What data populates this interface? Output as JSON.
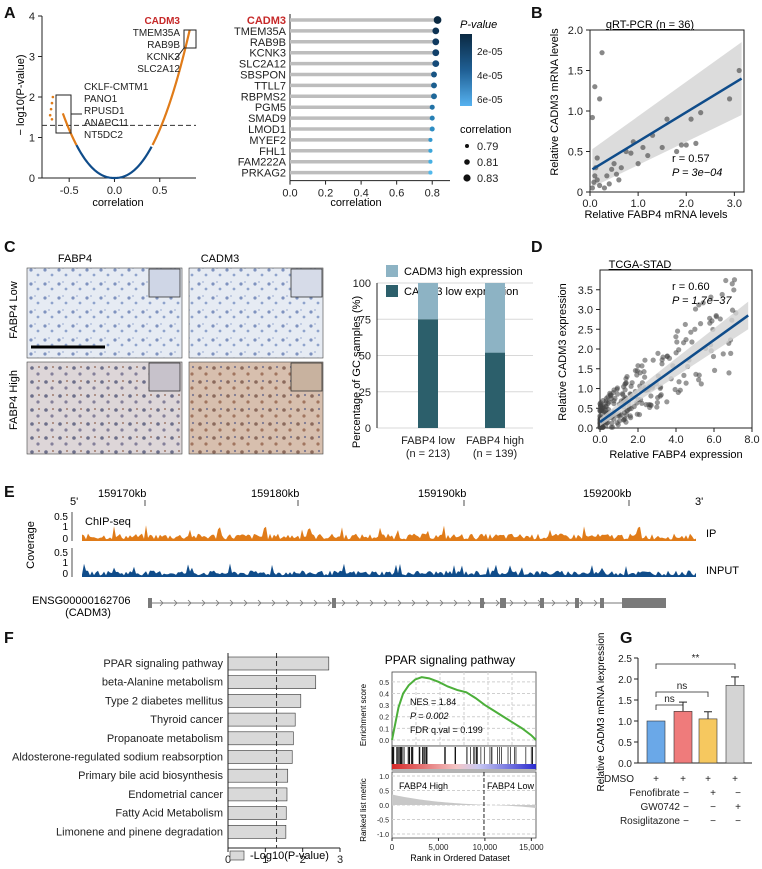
{
  "panel_letters": [
    "A",
    "B",
    "C",
    "D",
    "E",
    "F",
    "G"
  ],
  "colors": {
    "red_gene": "#c62828",
    "orange": "#e07b18",
    "navy": "#0f4c8a",
    "bar_high": "#8db3c4",
    "bar_low": "#2c5f6b",
    "grey_fill": "#d9d9d9",
    "gsea_green": "#4caf3a",
    "g_blue": "#6aa8e8",
    "g_red": "#ef7b7b",
    "g_yellow": "#f6c85f",
    "g_grey": "#d4d4d4"
  },
  "chart_data": [
    {
      "id": "A_volcano",
      "type": "scatter",
      "xlabel": "correlation",
      "ylabel": "− log10(P-value)",
      "xlim": [
        -0.8,
        0.9
      ],
      "ylim": [
        0,
        4
      ],
      "xticks": [
        "-0.5",
        "0.0",
        "0.5"
      ],
      "yticks": [
        "0",
        "1",
        "2",
        "3",
        "4"
      ],
      "threshold_y": 1.3,
      "top_labels": [
        "CADM3",
        "TMEM35A",
        "RAB9B",
        "KCNK3",
        "SLC2A12"
      ],
      "bottom_labels": [
        "CKLF-CMTM1",
        "PANO1",
        "RPUSD1",
        "ANAPC11",
        "NT5DC2"
      ]
    },
    {
      "id": "A_lollipop",
      "type": "bar",
      "categories": [
        "CADM3",
        "TMEM35A",
        "RAB9B",
        "KCNK3",
        "SLC2A12",
        "SBSPON",
        "TTLL7",
        "RBPMS2",
        "PGM5",
        "SMAD9",
        "LMOD1",
        "MYEF2",
        "FHL1",
        "FAM222A",
        "PRKAG2"
      ],
      "values": [
        0.83,
        0.82,
        0.82,
        0.82,
        0.82,
        0.81,
        0.81,
        0.81,
        0.8,
        0.8,
        0.8,
        0.79,
        0.79,
        0.79,
        0.79
      ],
      "xlabel": "correlation",
      "xticks": [
        "0.0",
        "0.2",
        "0.4",
        "0.6",
        "0.8"
      ],
      "xlim": [
        0,
        0.9
      ],
      "legend_pvalue_title": "P-value",
      "legend_pvalue_ticks": [
        "2e-05",
        "4e-05",
        "6e-05"
      ],
      "legend_corr_title": "correlation",
      "legend_corr_values": [
        "0.79",
        "0.81",
        "0.83"
      ]
    },
    {
      "id": "B_scatter",
      "type": "scatter",
      "title": "qRT-PCR (n = 36)",
      "xlabel": "Relative FABP4 mRNA levels",
      "ylabel": "Relative CADM3 mRNA levels",
      "xlim": [
        0,
        3.2
      ],
      "ylim": [
        0,
        2.0
      ],
      "xticks": [
        "0.0",
        "1.0",
        "2.0",
        "3.0"
      ],
      "yticks": [
        "0",
        "0.5",
        "1.0",
        "1.5",
        "2.0"
      ],
      "stat_r": "r = 0.57",
      "stat_p": "P = 3e−04",
      "fit": [
        [
          0.05,
          0.28
        ],
        [
          3.15,
          1.4
        ]
      ],
      "points": [
        [
          0.05,
          0.05
        ],
        [
          0.08,
          0.12
        ],
        [
          0.1,
          0.2
        ],
        [
          0.12,
          0.3
        ],
        [
          0.1,
          1.3
        ],
        [
          0.2,
          1.15
        ],
        [
          0.25,
          1.72
        ],
        [
          0.05,
          0.92
        ],
        [
          0.15,
          0.42
        ],
        [
          0.3,
          0.05
        ],
        [
          0.35,
          0.2
        ],
        [
          0.4,
          0.1
        ],
        [
          0.45,
          0.28
        ],
        [
          0.5,
          0.35
        ],
        [
          0.55,
          0.22
        ],
        [
          0.6,
          0.15
        ],
        [
          0.65,
          0.3
        ],
        [
          0.75,
          0.5
        ],
        [
          0.85,
          0.48
        ],
        [
          0.9,
          0.62
        ],
        [
          1.0,
          0.35
        ],
        [
          1.1,
          0.55
        ],
        [
          1.2,
          0.45
        ],
        [
          1.3,
          0.7
        ],
        [
          1.5,
          0.55
        ],
        [
          1.6,
          0.9
        ],
        [
          1.8,
          0.5
        ],
        [
          1.9,
          0.58
        ],
        [
          2.0,
          0.58
        ],
        [
          2.1,
          0.9
        ],
        [
          2.2,
          0.6
        ],
        [
          2.3,
          0.98
        ],
        [
          2.9,
          1.15
        ],
        [
          3.1,
          1.5
        ],
        [
          0.2,
          0.08
        ],
        [
          0.15,
          0.15
        ]
      ]
    },
    {
      "id": "C_bars",
      "type": "bar",
      "ylabel": "Percentage of GC samples (%)",
      "categories": [
        "FABP4 low",
        "FABP4 high"
      ],
      "category_n": [
        "(n = 213)",
        "(n = 139)"
      ],
      "series": [
        {
          "name": "CADM3 low expression",
          "values": [
            75,
            52
          ]
        },
        {
          "name": "CADM3 high expression",
          "values": [
            25,
            48
          ]
        }
      ],
      "ylim": [
        0,
        100
      ],
      "yticks": [
        "0",
        "25",
        "50",
        "75",
        "100"
      ]
    },
    {
      "id": "D_scatter",
      "type": "scatter",
      "title": "TCGA-STAD",
      "xlabel": "Relative FABP4 expression",
      "ylabel": "Relative CADM3 expression",
      "xlim": [
        0,
        8
      ],
      "ylim": [
        0,
        4
      ],
      "xticks": [
        "0.0",
        "2.0",
        "4.0",
        "6.0",
        "8.0"
      ],
      "yticks": [
        "0.0",
        "0.5",
        "1.0",
        "1.5",
        "2.0",
        "2.5",
        "3.0",
        "3.5"
      ],
      "stat_r": "r = 0.60",
      "stat_p": "P = 1.7e−37",
      "fit": [
        [
          0.0,
          0.15
        ],
        [
          7.8,
          2.85
        ]
      ]
    },
    {
      "id": "F_bars",
      "type": "bar",
      "categories": [
        "PPAR signaling pathway",
        "beta-Alanine metabolism",
        "Type 2 diabetes mellitus",
        "Thyroid cancer",
        "Propanoate metabolism",
        "Aldosterone-regulated sodium reabsorption",
        "Primary bile acid biosynthesis",
        "Endometrial cancer",
        "Fatty Acid Metabolism",
        "Limonene and pinene degradation"
      ],
      "values": [
        2.7,
        2.35,
        1.95,
        1.8,
        1.75,
        1.72,
        1.6,
        1.58,
        1.56,
        1.55
      ],
      "xlabel": "-Log10(P-value)",
      "xlim": [
        0,
        3
      ],
      "xticks": [
        "0",
        "1",
        "2",
        "3"
      ],
      "threshold_x": 1.3
    },
    {
      "id": "F_gsea",
      "type": "line",
      "title": "PPAR signaling pathway",
      "xlabel": "Rank in Ordered Dataset",
      "ylabel_top": "Enrichment score",
      "ylabel_bottom": "Ranked list metric",
      "xticks": [
        "0",
        "5,000",
        "10,000",
        "15,000"
      ],
      "yticks_top": [
        "0.0",
        "0.1",
        "0.2",
        "0.3",
        "0.4",
        "0.5"
      ],
      "yticks_bottom": [
        "-1.0",
        "-0.5",
        "0.0",
        "0.5",
        "1.0"
      ],
      "nes": "NES = 1.84",
      "p": "P = 0.002",
      "fdr": "FDR q.val = 0.199",
      "left_label": "FABP4 High",
      "right_label": "FABP4 Low",
      "zero_cross_rank": 9900
    },
    {
      "id": "G_bars",
      "type": "bar",
      "ylabel": "Relative CADM3 mRNA lexpression",
      "categories": [
        "DMSO",
        "Fenofibrate",
        "GW0742",
        "Rosiglitazone"
      ],
      "values": [
        1.0,
        1.23,
        1.05,
        1.85
      ],
      "errors": [
        0.0,
        0.22,
        0.17,
        0.2
      ],
      "ylim": [
        0,
        2.5
      ],
      "yticks": [
        "0.0",
        "0.5",
        "1.0",
        "1.5",
        "2.0",
        "2.5"
      ],
      "annotations": [
        "ns",
        "ns",
        "**"
      ],
      "treatment_rows": [
        {
          "name": "DMSO",
          "marks": [
            "+",
            "+",
            "+",
            "+"
          ]
        },
        {
          "name": "Fenofibrate",
          "marks": [
            "−",
            "+",
            "−",
            "−"
          ]
        },
        {
          "name": "GW0742",
          "marks": [
            "−",
            "−",
            "+",
            "−"
          ]
        },
        {
          "name": "Rosiglitazone",
          "marks": [
            "−",
            "−",
            "−",
            "+"
          ]
        }
      ]
    }
  ],
  "panelC": {
    "col_labels": [
      "FABP4",
      "CADM3"
    ],
    "row_labels": [
      "FABP4 Low",
      "FABP4 High"
    ],
    "legend": [
      "CADM3 high expression",
      "CADM3 low expression"
    ]
  },
  "panelE": {
    "prime5": "5'",
    "prime3": "3'",
    "coords": [
      "159170kb",
      "159180kb",
      "159190kb",
      "159200kb"
    ],
    "coverage_label": "Coverage",
    "chip_label": "ChIP-seq",
    "ticks": [
      "0.5",
      "1",
      "0"
    ],
    "ip_label": "IP",
    "input_label": "INPUT",
    "gene_id": "ENSG00000162706",
    "gene_name": "(CADM3)"
  }
}
